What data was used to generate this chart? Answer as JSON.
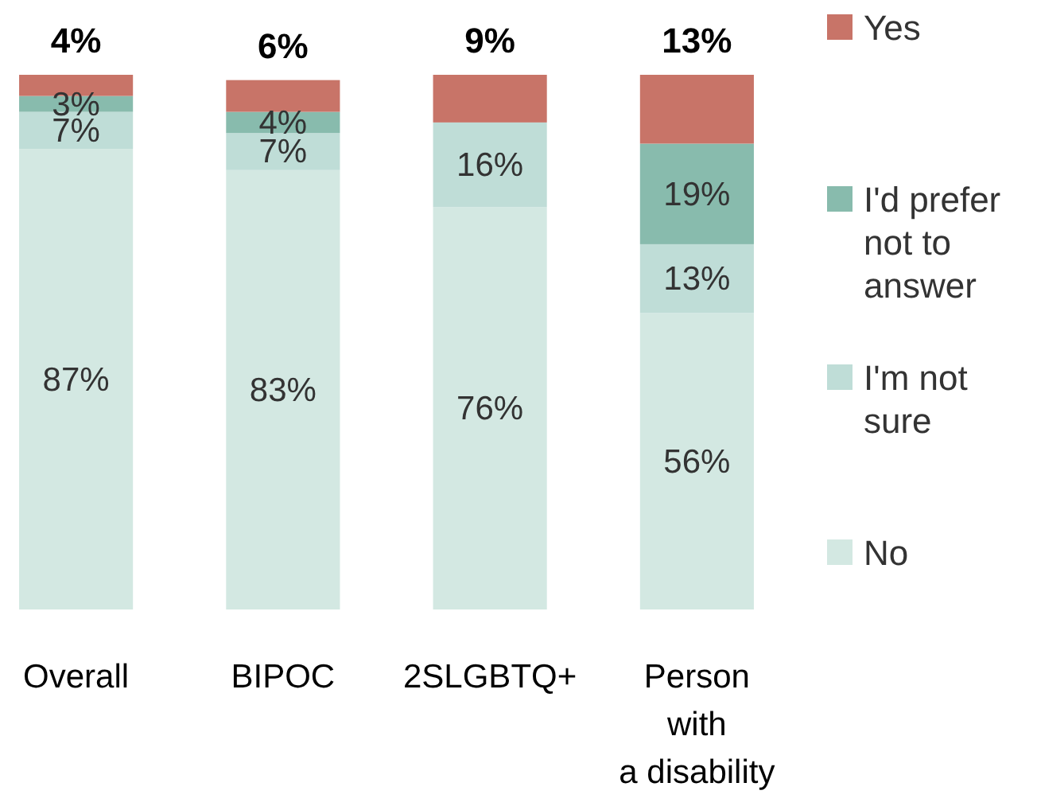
{
  "chart_data": {
    "type": "bar",
    "stacked": true,
    "categories": [
      "Overall",
      "BIPOC",
      "2SLGBTQ+",
      "Person\nwith\na disability"
    ],
    "series": [
      {
        "name": "No",
        "color": "#d3e8e2",
        "values": [
          87,
          83,
          76,
          56
        ],
        "value_labels": [
          "87%",
          "83%",
          "76%",
          "56%"
        ]
      },
      {
        "name": "I'm not sure",
        "color": "#bfddd7",
        "values": [
          7,
          7,
          16,
          13
        ],
        "value_labels": [
          "7%",
          "7%",
          "16%",
          "13%"
        ]
      },
      {
        "name": "I'd prefer not to answer",
        "color": "#88bbad",
        "values": [
          3,
          4,
          null,
          19
        ],
        "value_labels": [
          "3%",
          "4%",
          null,
          "19%"
        ]
      },
      {
        "name": "Yes",
        "color": "#c87468",
        "values": [
          4,
          6,
          9,
          13
        ],
        "value_labels": [
          "4%",
          "6%",
          "9%",
          "13%"
        ]
      }
    ],
    "legend": "right"
  }
}
